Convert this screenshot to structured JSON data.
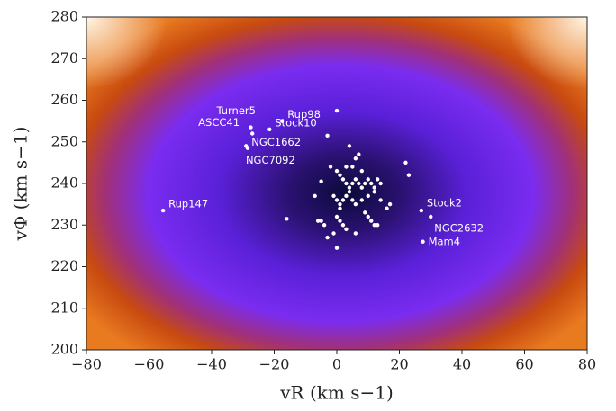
{
  "chart_data": {
    "type": "scatter",
    "x_label": "vR (km s−1)",
    "y_label": "vΦ (km s−1)",
    "xlim": [
      -80,
      80
    ],
    "ylim": [
      200,
      280
    ],
    "xticks": [
      {
        "value": -80,
        "label": "−80"
      },
      {
        "value": -60,
        "label": "−60"
      },
      {
        "value": -40,
        "label": "−40"
      },
      {
        "value": -20,
        "label": "−20"
      },
      0,
      20,
      40,
      60,
      80
    ],
    "yticks": [
      200,
      210,
      220,
      230,
      240,
      250,
      260,
      270,
      280
    ],
    "color": "#ffffff",
    "named_points": {
      "labels": [
        "Turner5",
        "ASCC41",
        "Rup98",
        "Stock10",
        "NGC1662",
        "NGC7092",
        "Rup147",
        "Stock2",
        "NGC2632",
        "Mam4"
      ],
      "x": [
        -27.5,
        -27,
        -17.5,
        -21.5,
        -29,
        -28.5,
        -55.5,
        27,
        30,
        27.5
      ],
      "y": [
        253.5,
        252,
        255,
        253,
        249,
        248.5,
        233.5,
        233.5,
        232,
        226
      ]
    },
    "points": {
      "x": [
        0,
        -3,
        -5,
        4,
        7,
        6,
        5,
        8,
        22,
        23,
        -7,
        -2,
        0,
        1,
        2,
        3,
        4,
        5,
        6,
        7,
        8,
        9,
        10,
        11,
        12,
        13,
        14,
        -1,
        0,
        1,
        2,
        3,
        4,
        5,
        6,
        8,
        10,
        12,
        14,
        16,
        -5,
        -4,
        0,
        1,
        2,
        9,
        11,
        12,
        -3,
        -1,
        3,
        6,
        10,
        13,
        17,
        -16,
        -6,
        1,
        0,
        3
      ],
      "y": [
        257.5,
        251.5,
        240.5,
        249,
        247,
        246,
        244,
        243,
        245,
        242,
        237,
        244,
        243,
        242,
        241,
        240,
        239,
        240,
        241,
        240,
        239,
        240,
        241,
        240,
        239,
        241,
        240,
        237,
        236,
        235,
        236,
        237,
        238,
        236,
        235,
        236,
        237,
        238,
        236,
        234,
        231,
        230,
        232,
        231,
        230,
        233,
        231,
        230,
        227,
        228,
        229,
        228,
        232,
        230,
        235,
        231.5,
        231,
        234,
        224.5,
        244
      ]
    }
  }
}
